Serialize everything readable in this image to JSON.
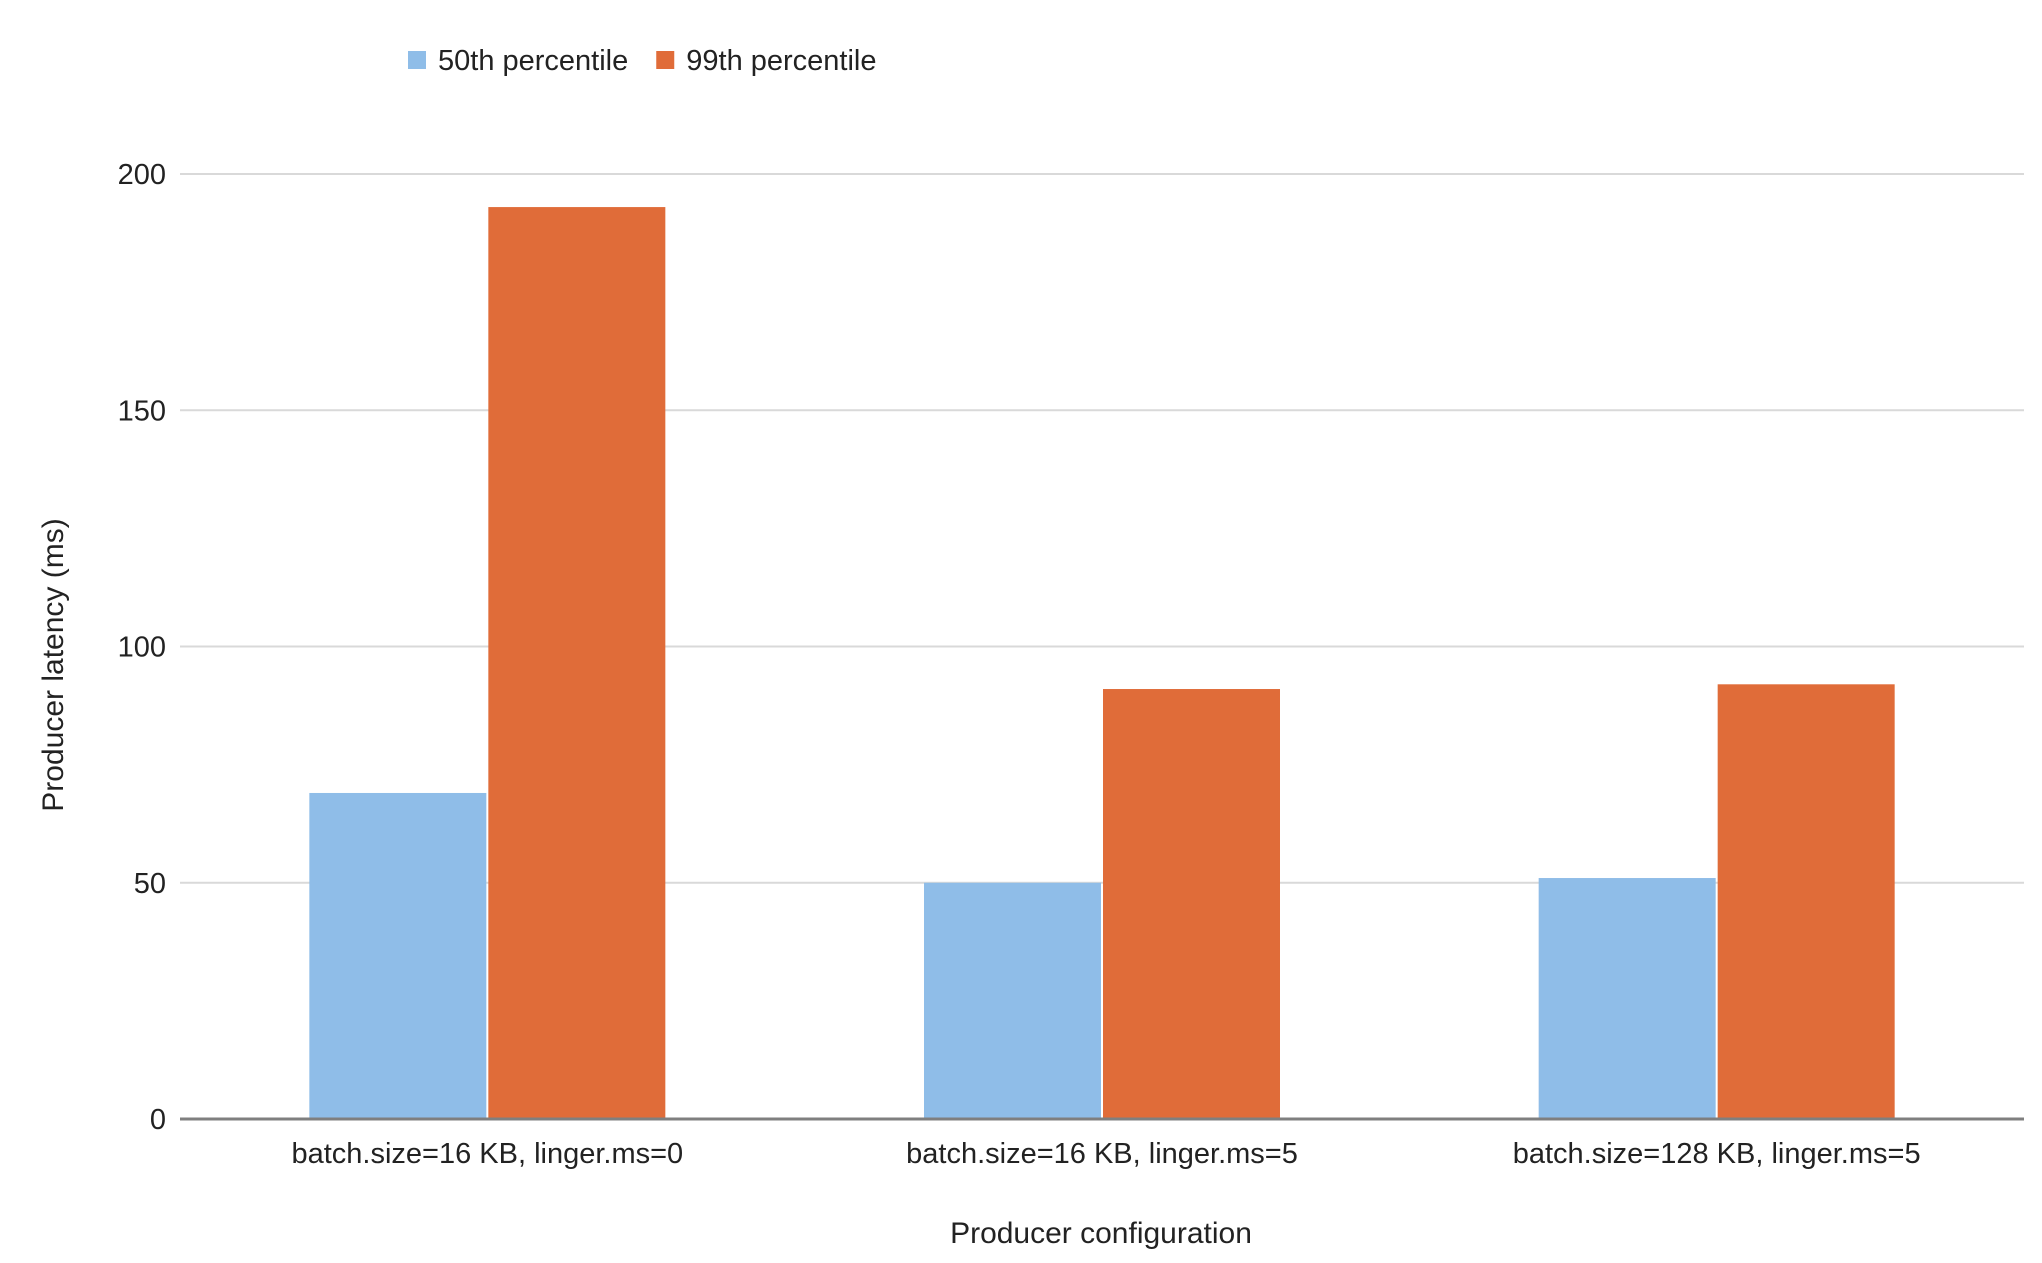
{
  "chart_data": {
    "type": "bar",
    "title": "",
    "xlabel": "Producer configuration",
    "ylabel": "Producer latency (ms)",
    "ylim": [
      0,
      200
    ],
    "yticks": [
      0,
      50,
      100,
      150,
      200
    ],
    "ytick_labels": [
      "0",
      "50",
      "100",
      "150",
      "200"
    ],
    "grid": true,
    "legend_position": "top-left",
    "categories": [
      "batch.size=16 KB, linger.ms=0",
      "batch.size=16 KB, linger.ms=5",
      "batch.size=128 KB, linger.ms=5"
    ],
    "series": [
      {
        "name": "50th percentile",
        "color": "#8fbde8",
        "values": [
          69,
          50,
          51
        ]
      },
      {
        "name": "99th percentile",
        "color": "#e06c39",
        "values": [
          193,
          91,
          92
        ]
      }
    ]
  }
}
